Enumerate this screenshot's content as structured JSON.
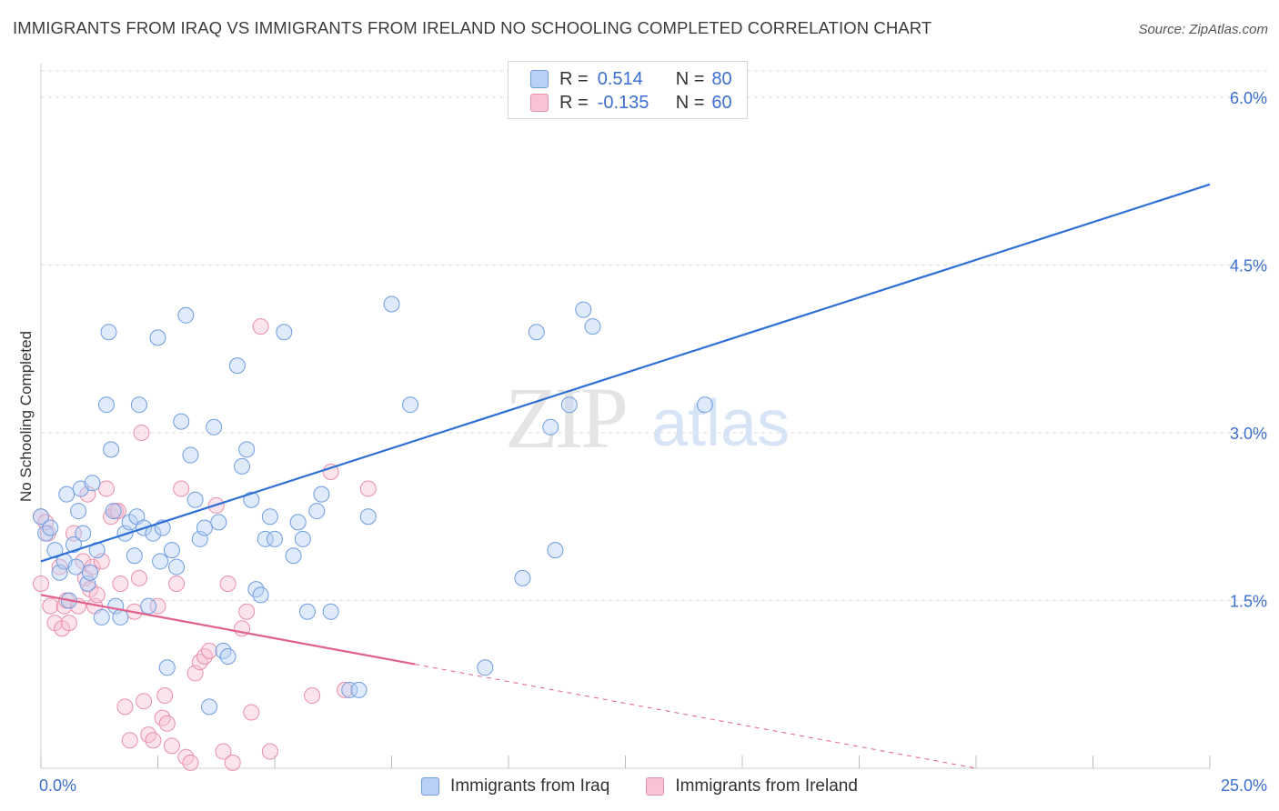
{
  "header": {
    "title": "IMMIGRANTS FROM IRAQ VS IMMIGRANTS FROM IRELAND NO SCHOOLING COMPLETED CORRELATION CHART",
    "source": "Source: ZipAtlas.com"
  },
  "legend": {
    "r_label": "R =",
    "n_label": "N =",
    "rows": [
      {
        "r": "0.514",
        "n": "80"
      },
      {
        "r": "-0.135",
        "n": "60"
      }
    ]
  },
  "watermark": {
    "zip": "ZIP",
    "atlas": "atlas"
  },
  "colors": {
    "iraq_fill": "#b8d0f5",
    "iraq_stroke": "#6f9de0",
    "iraq_line": "#2f6fd6",
    "ireland_fill": "#f8c4d4",
    "ireland_stroke": "#e88fab",
    "ireland_line": "#e0608e",
    "tick_label": "#3b6fd0",
    "grid": "#dcdcdc"
  },
  "chart_data": {
    "type": "scatter",
    "title": "IMMIGRANTS FROM IRAQ VS IMMIGRANTS FROM IRELAND NO SCHOOLING COMPLETED CORRELATION CHART",
    "xlabel": "",
    "ylabel": "No Schooling Completed",
    "xlim": [
      0,
      25
    ],
    "ylim": [
      0,
      6.3
    ],
    "x_tick_labels": [
      {
        "value": 0,
        "label": "0.0%"
      },
      {
        "value": 25,
        "label": "25.0%"
      }
    ],
    "y_tick_labels": [
      {
        "value": 1.5,
        "label": "1.5%"
      },
      {
        "value": 3.0,
        "label": "3.0%"
      },
      {
        "value": 4.5,
        "label": "4.5%"
      },
      {
        "value": 6.0,
        "label": "6.0%"
      }
    ],
    "grid": true,
    "legend_position": "top-center",
    "series": [
      {
        "name": "Immigrants from Iraq",
        "R": 0.514,
        "N": 80,
        "trend": {
          "x": [
            0,
            25
          ],
          "y": [
            1.85,
            5.22
          ]
        },
        "points": [
          [
            0.0,
            2.25
          ],
          [
            0.1,
            2.1
          ],
          [
            0.2,
            2.15
          ],
          [
            0.3,
            1.95
          ],
          [
            0.4,
            1.75
          ],
          [
            0.5,
            1.85
          ],
          [
            0.55,
            2.45
          ],
          [
            0.6,
            1.5
          ],
          [
            0.7,
            2.0
          ],
          [
            0.75,
            1.8
          ],
          [
            0.8,
            2.3
          ],
          [
            0.85,
            2.5
          ],
          [
            0.9,
            2.1
          ],
          [
            1.0,
            1.65
          ],
          [
            1.05,
            1.75
          ],
          [
            1.1,
            2.55
          ],
          [
            1.2,
            1.95
          ],
          [
            1.3,
            1.35
          ],
          [
            1.4,
            3.25
          ],
          [
            1.45,
            3.9
          ],
          [
            1.5,
            2.85
          ],
          [
            1.55,
            2.3
          ],
          [
            1.6,
            1.45
          ],
          [
            1.7,
            1.35
          ],
          [
            1.8,
            2.1
          ],
          [
            1.9,
            2.2
          ],
          [
            2.0,
            1.9
          ],
          [
            2.05,
            2.25
          ],
          [
            2.1,
            3.25
          ],
          [
            2.2,
            2.15
          ],
          [
            2.3,
            1.45
          ],
          [
            2.4,
            2.1
          ],
          [
            2.5,
            3.85
          ],
          [
            2.55,
            1.85
          ],
          [
            2.6,
            2.15
          ],
          [
            2.7,
            0.9
          ],
          [
            2.8,
            1.95
          ],
          [
            2.9,
            1.8
          ],
          [
            3.0,
            3.1
          ],
          [
            3.1,
            4.05
          ],
          [
            3.2,
            2.8
          ],
          [
            3.3,
            2.4
          ],
          [
            3.4,
            2.05
          ],
          [
            3.5,
            2.15
          ],
          [
            3.6,
            0.55
          ],
          [
            3.7,
            3.05
          ],
          [
            3.8,
            2.2
          ],
          [
            3.9,
            1.05
          ],
          [
            4.0,
            1.0
          ],
          [
            4.2,
            3.6
          ],
          [
            4.3,
            2.7
          ],
          [
            4.4,
            2.85
          ],
          [
            4.5,
            2.4
          ],
          [
            4.6,
            1.6
          ],
          [
            4.7,
            1.55
          ],
          [
            4.8,
            2.05
          ],
          [
            4.9,
            2.25
          ],
          [
            5.0,
            2.05
          ],
          [
            5.2,
            3.9
          ],
          [
            5.4,
            1.9
          ],
          [
            5.5,
            2.2
          ],
          [
            5.6,
            2.05
          ],
          [
            5.7,
            1.4
          ],
          [
            5.9,
            2.3
          ],
          [
            6.0,
            2.45
          ],
          [
            6.2,
            1.4
          ],
          [
            6.6,
            0.7
          ],
          [
            6.8,
            0.7
          ],
          [
            7.0,
            2.25
          ],
          [
            7.5,
            4.15
          ],
          [
            7.9,
            3.25
          ],
          [
            9.5,
            0.9
          ],
          [
            10.3,
            1.7
          ],
          [
            10.6,
            3.9
          ],
          [
            10.9,
            3.05
          ],
          [
            11.0,
            1.95
          ],
          [
            11.8,
            3.95
          ],
          [
            11.3,
            3.25
          ],
          [
            14.2,
            3.25
          ],
          [
            11.6,
            4.1
          ]
        ]
      },
      {
        "name": "Immigrants from Ireland",
        "R": -0.135,
        "N": 60,
        "trend": {
          "x": [
            0,
            8.0
          ],
          "y": [
            1.55,
            0.93
          ]
        },
        "trend_dashed": {
          "x": [
            8.0,
            20
          ],
          "y": [
            0.93,
            0.0
          ]
        },
        "points": [
          [
            0.0,
            2.25
          ],
          [
            0.0,
            1.65
          ],
          [
            0.1,
            2.2
          ],
          [
            0.15,
            2.1
          ],
          [
            0.2,
            1.45
          ],
          [
            0.3,
            1.3
          ],
          [
            0.4,
            1.8
          ],
          [
            0.45,
            1.25
          ],
          [
            0.5,
            1.45
          ],
          [
            0.55,
            1.5
          ],
          [
            0.6,
            1.3
          ],
          [
            0.7,
            2.1
          ],
          [
            0.8,
            1.45
          ],
          [
            0.9,
            1.85
          ],
          [
            0.95,
            1.7
          ],
          [
            1.0,
            2.45
          ],
          [
            1.05,
            1.6
          ],
          [
            1.1,
            1.8
          ],
          [
            1.15,
            1.45
          ],
          [
            1.2,
            1.55
          ],
          [
            1.3,
            1.85
          ],
          [
            1.4,
            2.5
          ],
          [
            1.5,
            2.25
          ],
          [
            1.6,
            2.3
          ],
          [
            1.65,
            2.3
          ],
          [
            1.7,
            1.65
          ],
          [
            1.8,
            0.55
          ],
          [
            1.9,
            0.25
          ],
          [
            2.0,
            1.4
          ],
          [
            2.1,
            1.7
          ],
          [
            2.15,
            3.0
          ],
          [
            2.2,
            0.6
          ],
          [
            2.3,
            0.3
          ],
          [
            2.4,
            0.25
          ],
          [
            2.5,
            1.45
          ],
          [
            2.6,
            0.45
          ],
          [
            2.65,
            0.65
          ],
          [
            2.7,
            0.4
          ],
          [
            2.8,
            0.2
          ],
          [
            2.9,
            1.65
          ],
          [
            3.0,
            2.5
          ],
          [
            3.1,
            0.1
          ],
          [
            3.2,
            0.05
          ],
          [
            3.3,
            0.85
          ],
          [
            3.4,
            0.95
          ],
          [
            3.5,
            1.0
          ],
          [
            3.6,
            1.05
          ],
          [
            3.75,
            2.35
          ],
          [
            3.9,
            0.15
          ],
          [
            4.0,
            1.65
          ],
          [
            4.1,
            0.05
          ],
          [
            4.3,
            1.25
          ],
          [
            4.4,
            1.4
          ],
          [
            4.5,
            0.5
          ],
          [
            4.7,
            3.95
          ],
          [
            4.9,
            0.15
          ],
          [
            5.8,
            0.65
          ],
          [
            6.2,
            2.65
          ],
          [
            6.5,
            0.7
          ],
          [
            7.0,
            2.5
          ]
        ]
      }
    ]
  },
  "bottom_legend": {
    "iraq_label": "Immigrants from Iraq",
    "ireland_label": "Immigrants from Ireland"
  }
}
